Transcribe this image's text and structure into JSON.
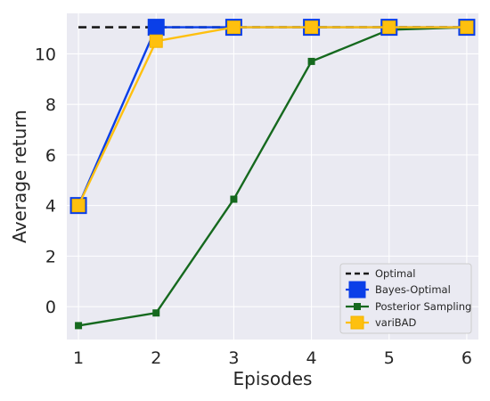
{
  "chart_data": {
    "type": "line",
    "xlabel": "Episodes",
    "ylabel": "Average return",
    "x": [
      1,
      2,
      3,
      4,
      5,
      6
    ],
    "xticks": [
      "1",
      "2",
      "3",
      "4",
      "5",
      "6"
    ],
    "yticks": [
      "0",
      "2",
      "4",
      "6",
      "8",
      "10"
    ],
    "xlim": [
      0.85,
      6.15
    ],
    "ylim": [
      -1.3,
      11.6
    ],
    "grid": true,
    "background": "#eaeaf2",
    "legend_position": "bottom-right",
    "series": [
      {
        "name": "Optimal",
        "values": [
          11.05,
          11.05,
          11.05,
          11.05,
          11.05,
          11.05
        ],
        "color": "#1a1a1a",
        "style": "dashed",
        "marker": "none"
      },
      {
        "name": "Bayes-Optimal",
        "values": [
          4.0,
          11.05,
          11.05,
          11.05,
          11.05,
          11.05
        ],
        "color": "#0a3fe8",
        "style": "solid",
        "marker": "square-large"
      },
      {
        "name": "Posterior Sampling",
        "values": [
          -0.75,
          -0.25,
          4.25,
          9.7,
          10.95,
          11.05
        ],
        "color": "#15691e",
        "style": "solid",
        "marker": "square-small"
      },
      {
        "name": "variBAD",
        "values": [
          4.0,
          10.5,
          11.05,
          11.05,
          11.05,
          11.05
        ],
        "color": "#fec00f",
        "style": "solid",
        "marker": "square-medium"
      }
    ]
  }
}
